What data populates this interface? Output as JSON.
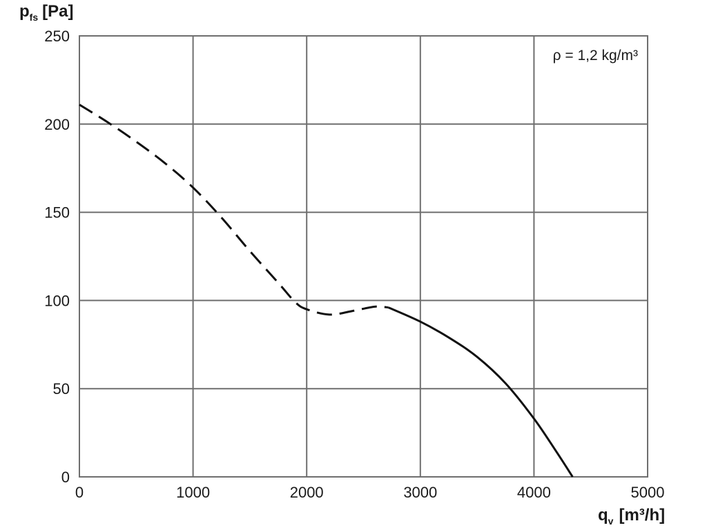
{
  "chart_data": {
    "type": "line",
    "ylabel": {
      "main": "p",
      "sub": "fs",
      "unit": "[Pa]"
    },
    "xlabel": {
      "main": "q",
      "sub": "v",
      "unit": "[m³/h]"
    },
    "annotation": "ρ = 1,2 kg/m³",
    "xlim": [
      0,
      5000
    ],
    "ylim": [
      0,
      250
    ],
    "grid": true,
    "x_ticks": [
      0,
      1000,
      2000,
      3000,
      4000,
      5000
    ],
    "x_tick_labels": [
      "0",
      "1000",
      "2000",
      "3000",
      "4000",
      "5000"
    ],
    "y_ticks": [
      0,
      50,
      100,
      150,
      200,
      250
    ],
    "y_tick_labels": [
      "0",
      "50",
      "100",
      "150",
      "200",
      "250"
    ],
    "series": [
      {
        "style": "dashed",
        "points": [
          [
            0,
            211
          ],
          [
            250,
            201
          ],
          [
            500,
            190
          ],
          [
            750,
            178
          ],
          [
            1000,
            164
          ],
          [
            1250,
            147
          ],
          [
            1500,
            128
          ],
          [
            1750,
            110
          ],
          [
            1900,
            99
          ],
          [
            2000,
            95
          ],
          [
            2200,
            92
          ],
          [
            2400,
            94
          ],
          [
            2600,
            96.5
          ],
          [
            2720,
            96
          ]
        ]
      },
      {
        "style": "solid",
        "points": [
          [
            2720,
            96
          ],
          [
            3000,
            88
          ],
          [
            3250,
            79
          ],
          [
            3500,
            68
          ],
          [
            3750,
            53
          ],
          [
            4000,
            33
          ],
          [
            4200,
            14
          ],
          [
            4340,
            0
          ]
        ]
      }
    ]
  }
}
